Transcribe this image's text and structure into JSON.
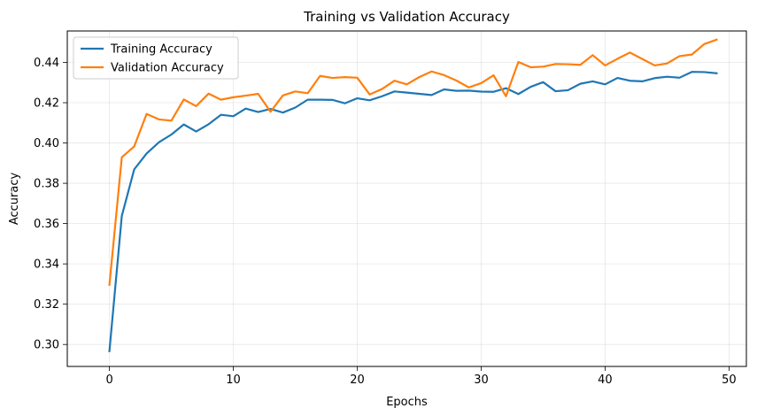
{
  "chart_data": {
    "type": "line",
    "title": "Training vs Validation Accuracy",
    "xlabel": "Epochs",
    "ylabel": "Accuracy",
    "xlim": [
      -3.4,
      51.4
    ],
    "ylim": [
      0.2891,
      0.4556
    ],
    "xticks": [
      0,
      10,
      20,
      30,
      40,
      50
    ],
    "yticks": [
      0.3,
      0.32,
      0.34,
      0.36,
      0.38,
      0.4,
      0.42,
      0.44
    ],
    "ytick_labels": [
      "0.30",
      "0.32",
      "0.34",
      "0.36",
      "0.38",
      "0.40",
      "0.42",
      "0.44"
    ],
    "grid": true,
    "legend_position": "upper-left",
    "x": [
      0,
      1,
      2,
      3,
      4,
      5,
      6,
      7,
      8,
      9,
      10,
      11,
      12,
      13,
      14,
      15,
      16,
      17,
      18,
      19,
      20,
      21,
      22,
      23,
      24,
      25,
      26,
      27,
      28,
      29,
      30,
      31,
      32,
      33,
      34,
      35,
      36,
      37,
      38,
      39,
      40,
      41,
      42,
      43,
      44,
      45,
      46,
      47,
      48,
      49
    ],
    "series": [
      {
        "name": "Training Accuracy",
        "color": "#1f77b4",
        "values": [
          0.2967,
          0.3638,
          0.3869,
          0.3948,
          0.4004,
          0.4042,
          0.4092,
          0.4057,
          0.4093,
          0.414,
          0.4133,
          0.4171,
          0.4154,
          0.4169,
          0.4151,
          0.4176,
          0.4215,
          0.4215,
          0.4214,
          0.4197,
          0.4222,
          0.4212,
          0.4232,
          0.4256,
          0.425,
          0.4244,
          0.4238,
          0.4266,
          0.4259,
          0.426,
          0.4255,
          0.4254,
          0.4272,
          0.4243,
          0.4279,
          0.4302,
          0.4257,
          0.4262,
          0.4294,
          0.4306,
          0.4291,
          0.4323,
          0.4309,
          0.4306,
          0.4322,
          0.4329,
          0.4324,
          0.4353,
          0.4352,
          0.4346
        ]
      },
      {
        "name": "Validation Accuracy",
        "color": "#ff7f0e",
        "values": [
          0.3296,
          0.3929,
          0.3983,
          0.4144,
          0.4117,
          0.4111,
          0.4216,
          0.4183,
          0.4245,
          0.4215,
          0.4227,
          0.4235,
          0.4244,
          0.4155,
          0.4236,
          0.4256,
          0.4247,
          0.4333,
          0.4323,
          0.4327,
          0.4324,
          0.4241,
          0.4268,
          0.4309,
          0.4291,
          0.4327,
          0.4355,
          0.4337,
          0.431,
          0.4276,
          0.4297,
          0.4336,
          0.4232,
          0.4402,
          0.4376,
          0.4379,
          0.4392,
          0.4391,
          0.4388,
          0.4436,
          0.4385,
          0.4418,
          0.4449,
          0.4417,
          0.4385,
          0.4395,
          0.4431,
          0.4439,
          0.4491,
          0.4513
        ]
      }
    ]
  }
}
